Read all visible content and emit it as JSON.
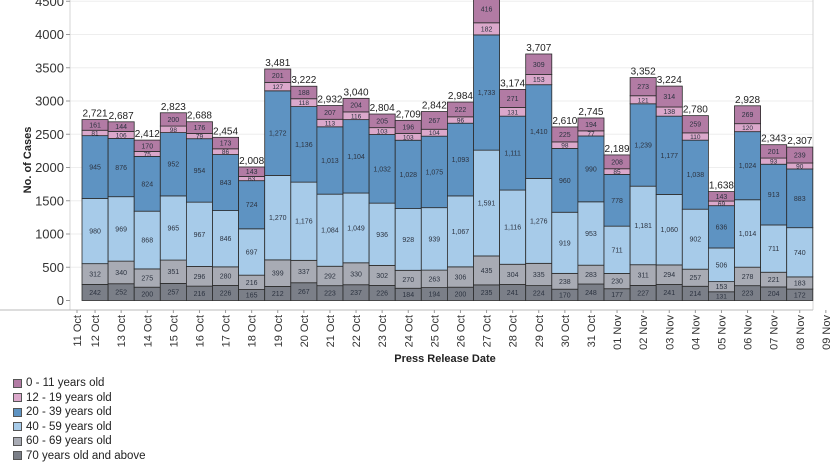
{
  "chart_data": {
    "type": "bar",
    "stacked": true,
    "title": "",
    "xlabel": "Press Release Date",
    "ylabel": "No. of Cases",
    "ylim": [
      0,
      4500
    ],
    "yticks": [
      0,
      500,
      1000,
      1500,
      2000,
      2500,
      3000,
      3500,
      4000,
      4500
    ],
    "ytick_labels": [
      "0",
      "500",
      "1000",
      "1500",
      "2000",
      "2500",
      "3000",
      "3500",
      "4000",
      "4500"
    ],
    "grid": true,
    "legend_position": "bottom-left",
    "x_tick_labels": [
      "11 Oct",
      "12 Oct",
      "13 Oct",
      "14 Oct",
      "15 Oct",
      "16 Oct",
      "17 Oct",
      "18 Oct",
      "19 Oct",
      "20 Oct",
      "21 Oct",
      "22 Oct",
      "23 Oct",
      "24 Oct",
      "25 Oct",
      "26 Oct",
      "27 Oct",
      "28 Oct",
      "29 Oct",
      "30 Oct",
      "31 Oct",
      "01 Nov",
      "02 Nov",
      "03 Nov",
      "04 Nov",
      "05 Nov",
      "06 Nov",
      "07 Nov",
      "08 Nov",
      "09 Nov"
    ],
    "categories": [
      "12 Oct",
      "13 Oct",
      "14 Oct",
      "15 Oct",
      "16 Oct",
      "17 Oct",
      "18 Oct",
      "19 Oct",
      "20 Oct",
      "21 Oct",
      "22 Oct",
      "23 Oct",
      "24 Oct",
      "25 Oct",
      "26 Oct",
      "27 Oct",
      "28 Oct",
      "29 Oct",
      "30 Oct",
      "31 Oct",
      "01 Nov",
      "02 Nov",
      "03 Nov",
      "04 Nov",
      "05 Nov",
      "06 Nov",
      "07 Nov",
      "08 Nov"
    ],
    "series": [
      {
        "name": "70 years old and above",
        "color": "#7b7f88",
        "values": [
          242,
          252,
          200,
          257,
          216,
          226,
          165,
          212,
          267,
          223,
          237,
          226,
          184,
          194,
          200,
          235,
          241,
          224,
          170,
          248,
          177,
          227,
          241,
          214,
          131,
          223,
          204,
          172
        ]
      },
      {
        "name": "60 - 69 years old",
        "color": "#a8abb4",
        "values": [
          312,
          340,
          275,
          351,
          296,
          280,
          216,
          399,
          337,
          292,
          330,
          302,
          270,
          263,
          306,
          435,
          304,
          335,
          238,
          283,
          230,
          311,
          294,
          257,
          153,
          278,
          221,
          183
        ]
      },
      {
        "name": "40 - 59 years old",
        "color": "#a7cbe9",
        "values": [
          980,
          969,
          868,
          965,
          967,
          846,
          697,
          1270,
          1176,
          1084,
          1049,
          936,
          928,
          939,
          1067,
          1591,
          1116,
          1276,
          919,
          953,
          711,
          1181,
          1060,
          902,
          506,
          1014,
          711,
          740
        ]
      },
      {
        "name": "20 - 39 years old",
        "color": "#5e93c2",
        "values": [
          945,
          876,
          824,
          952,
          954,
          843,
          724,
          1272,
          1136,
          1013,
          1104,
          1032,
          1028,
          1075,
          1093,
          1733,
          1111,
          1410,
          960,
          990,
          778,
          1239,
          1177,
          1038,
          636,
          1024,
          913,
          883
        ]
      },
      {
        "name": "12 - 19 years old",
        "color": "#dba8cb",
        "values": [
          81,
          106,
          75,
          98,
          79,
          86,
          63,
          127,
          118,
          113,
          116,
          103,
          103,
          104,
          96,
          182,
          131,
          153,
          98,
          77,
          85,
          121,
          138,
          110,
          69,
          120,
          93,
          90
        ]
      },
      {
        "name": "0 - 11 years old",
        "color": "#b27ba4",
        "values": [
          161,
          144,
          170,
          200,
          176,
          173,
          143,
          201,
          188,
          207,
          204,
          205,
          196,
          267,
          222,
          416,
          271,
          309,
          225,
          194,
          208,
          273,
          314,
          259,
          143,
          269,
          201,
          239
        ]
      }
    ],
    "totals": [
      "2,721",
      "2,687",
      "2,412",
      "2,823",
      "2,688",
      "2,454",
      "2,008",
      "3,481",
      "3,222",
      "2,932",
      "3,040",
      "2,804",
      "2,709",
      "2,842",
      "2,984",
      "",
      "3,174",
      "3,707",
      "2,610",
      "2,745",
      "2,189",
      "3,352",
      "3,224",
      "2,780",
      "1,638",
      "2,928",
      "2,343",
      "2,307"
    ]
  },
  "legend": {
    "items": [
      {
        "label": "0 - 11 years old",
        "color": "#b27ba4"
      },
      {
        "label": "12 - 19 years old",
        "color": "#dba8cb"
      },
      {
        "label": "20 - 39 years old",
        "color": "#5e93c2"
      },
      {
        "label": "40 - 59 years old",
        "color": "#a7cbe9"
      },
      {
        "label": "60 - 69 years old",
        "color": "#a8abb4"
      },
      {
        "label": "70 years old and above",
        "color": "#7b7f88"
      }
    ]
  }
}
